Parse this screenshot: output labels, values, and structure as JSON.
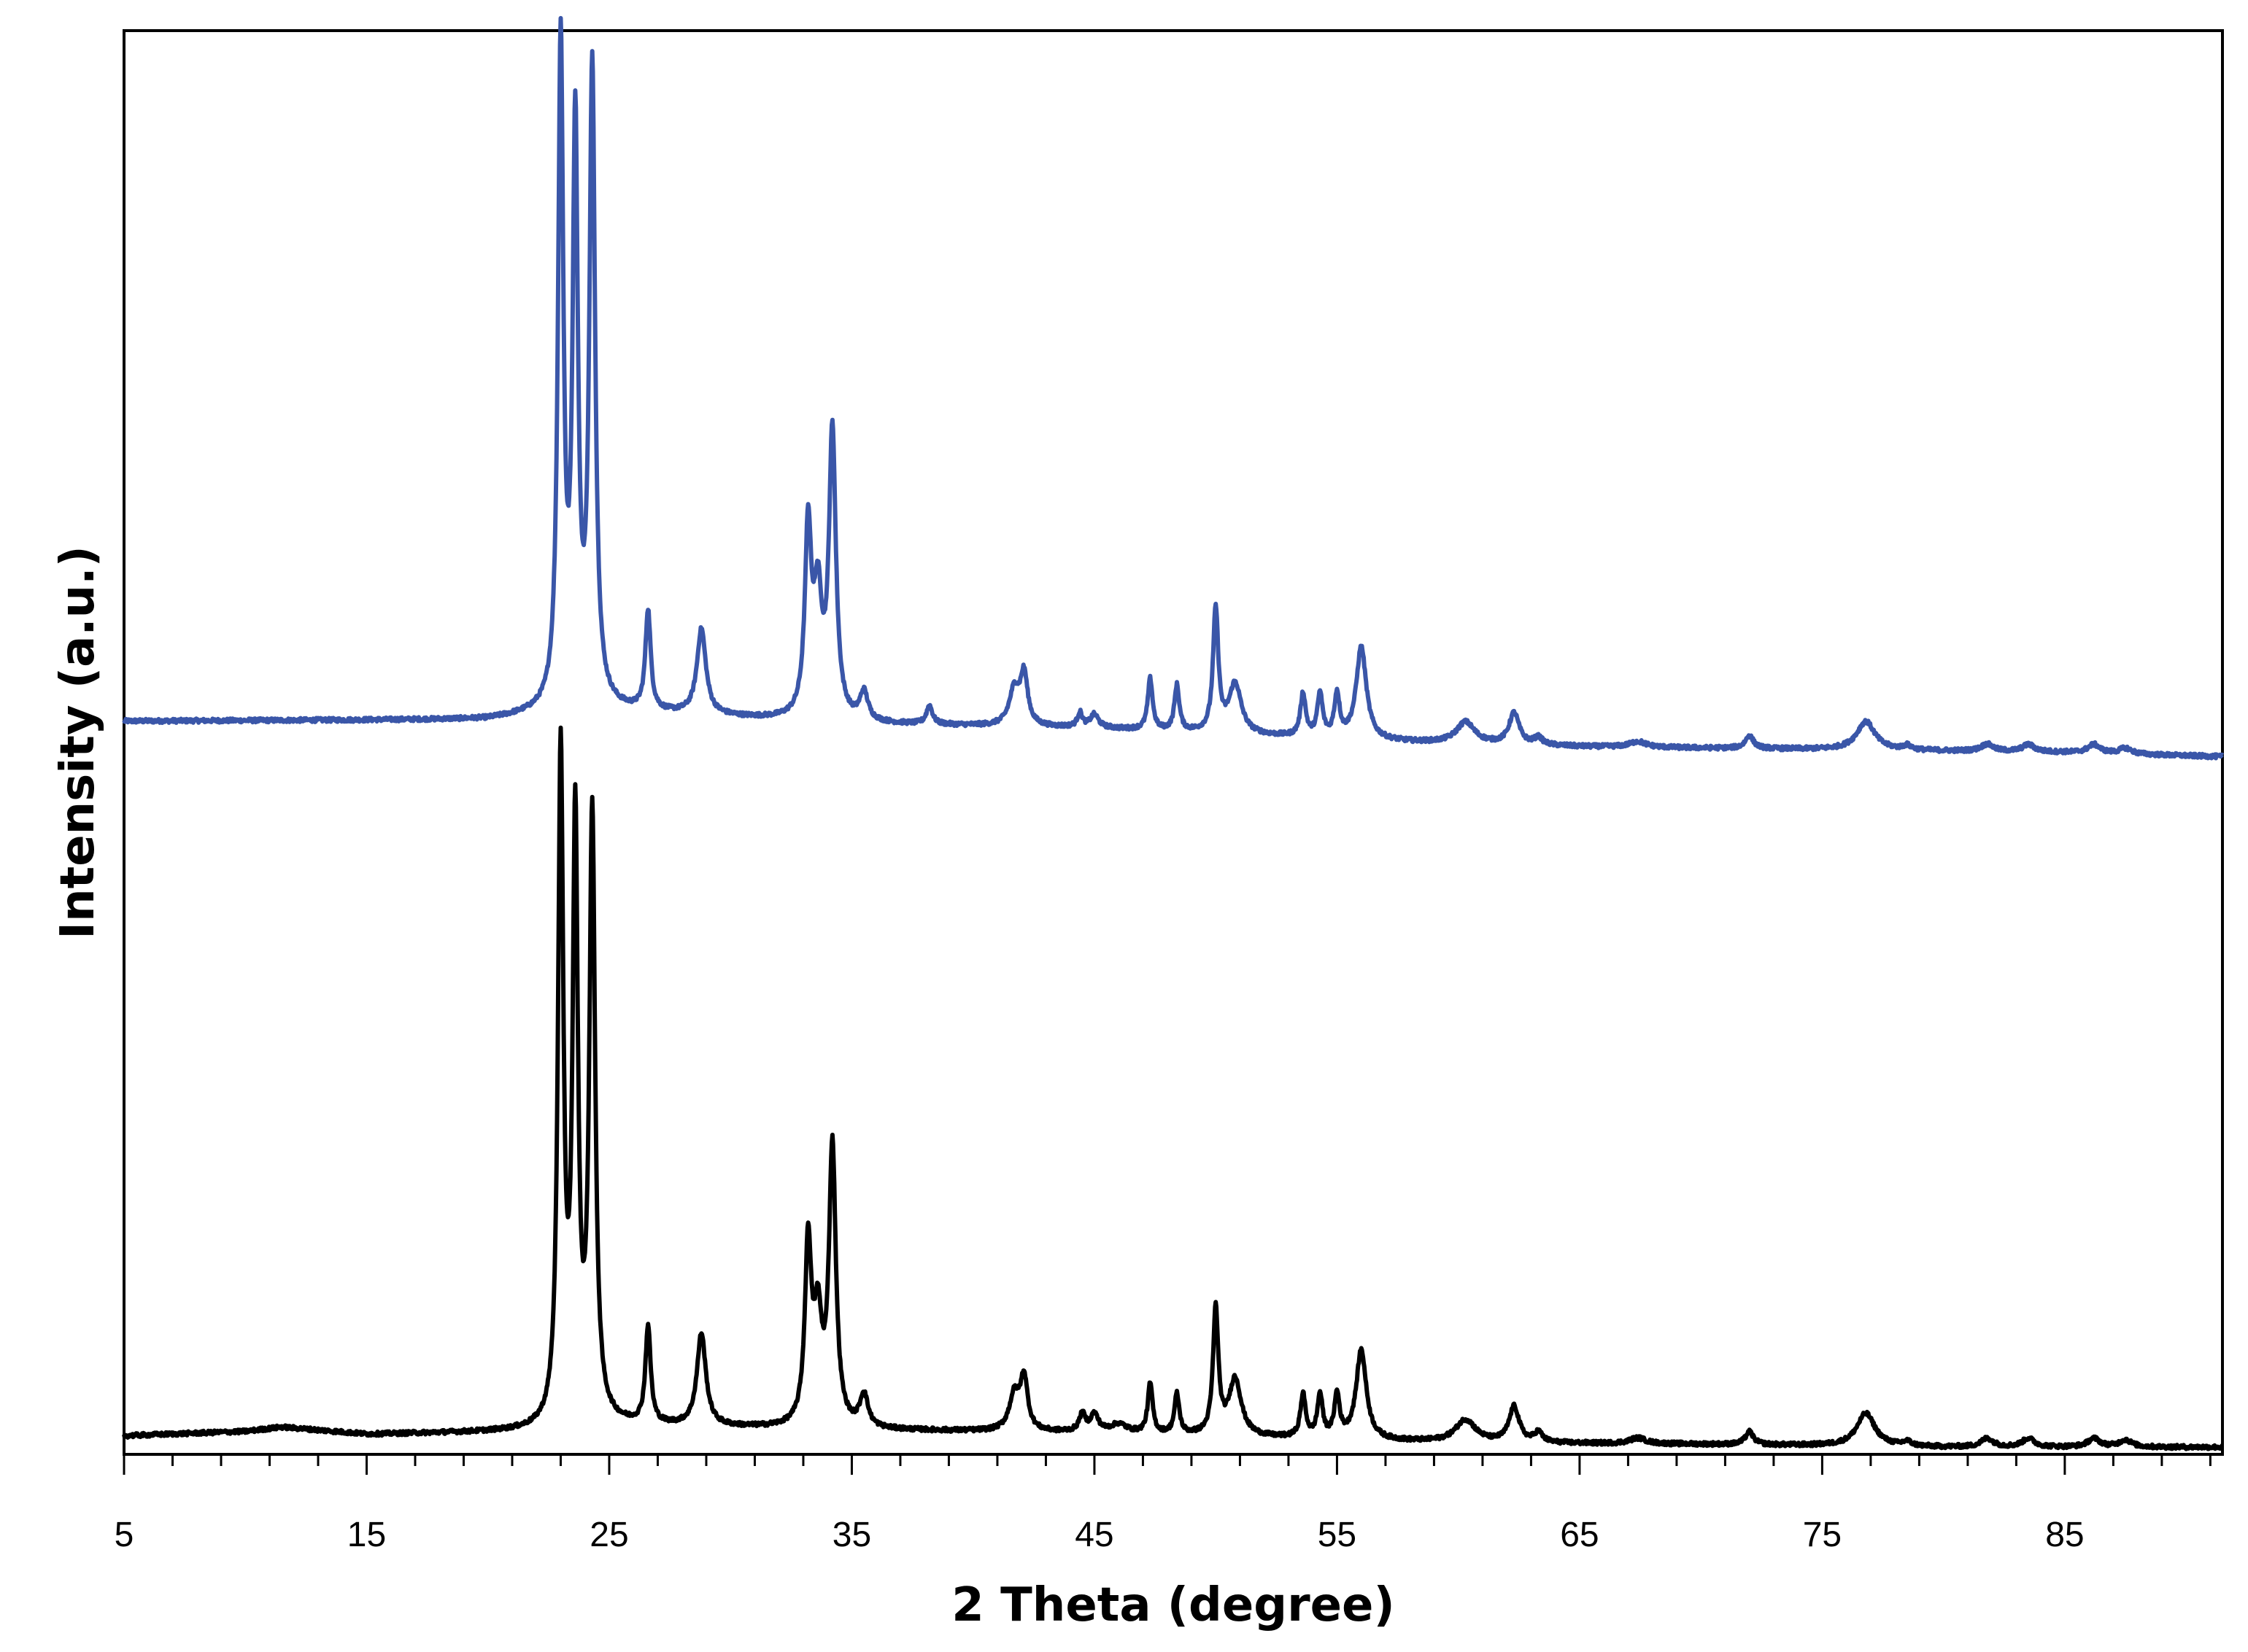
{
  "chart_data": {
    "type": "line",
    "title": "",
    "xlabel": "2 Theta (degree)",
    "ylabel": "Intensity (a.u.)",
    "xlim": [
      5,
      91.5
    ],
    "ylim": [
      0,
      100
    ],
    "x_ticks": [
      5,
      15,
      25,
      35,
      45,
      55,
      65,
      75,
      85
    ],
    "y_tick_labels_shown": false,
    "grid": false,
    "legend": "none",
    "series": [
      {
        "color": "#3a56a8",
        "baseline": [
          [
            5,
            51.5
          ],
          [
            20,
            51.6
          ],
          [
            22.5,
            52.0
          ],
          [
            25,
            52.2
          ],
          [
            35,
            51.3
          ],
          [
            45,
            51.0
          ],
          [
            55,
            50.2
          ],
          [
            58,
            50.0
          ],
          [
            65,
            49.7
          ],
          [
            75,
            49.5
          ],
          [
            85,
            49.3
          ],
          [
            91.5,
            49.0
          ]
        ],
        "peaks": [
          {
            "x": 23.0,
            "height": 46.5,
            "width": 0.13
          },
          {
            "x": 23.6,
            "height": 40.0,
            "width": 0.13
          },
          {
            "x": 24.3,
            "height": 44.5,
            "width": 0.14
          },
          {
            "x": 26.6,
            "height": 7.0,
            "width": 0.13
          },
          {
            "x": 28.8,
            "height": 6.0,
            "width": 0.22
          },
          {
            "x": 33.2,
            "height": 13.0,
            "width": 0.16
          },
          {
            "x": 33.6,
            "height": 8.0,
            "width": 0.2
          },
          {
            "x": 34.2,
            "height": 20.0,
            "width": 0.17
          },
          {
            "x": 35.5,
            "height": 2.0,
            "width": 0.2
          },
          {
            "x": 38.2,
            "height": 1.3,
            "width": 0.15
          },
          {
            "x": 41.7,
            "height": 2.5,
            "width": 0.25
          },
          {
            "x": 42.1,
            "height": 3.5,
            "width": 0.18
          },
          {
            "x": 44.4,
            "height": 1.0,
            "width": 0.12
          },
          {
            "x": 45.0,
            "height": 0.9,
            "width": 0.2
          },
          {
            "x": 47.3,
            "height": 3.6,
            "width": 0.12
          },
          {
            "x": 48.4,
            "height": 3.2,
            "width": 0.12
          },
          {
            "x": 50.0,
            "height": 8.6,
            "width": 0.13
          },
          {
            "x": 50.8,
            "height": 3.5,
            "width": 0.3
          },
          {
            "x": 53.6,
            "height": 3.0,
            "width": 0.13
          },
          {
            "x": 54.3,
            "height": 3.0,
            "width": 0.13
          },
          {
            "x": 55.0,
            "height": 3.0,
            "width": 0.13
          },
          {
            "x": 56.0,
            "height": 6.5,
            "width": 0.25
          },
          {
            "x": 60.3,
            "height": 1.5,
            "width": 0.45
          },
          {
            "x": 62.3,
            "height": 2.2,
            "width": 0.25
          },
          {
            "x": 63.3,
            "height": 0.5,
            "width": 0.2
          },
          {
            "x": 67.4,
            "height": 0.4,
            "width": 0.4
          },
          {
            "x": 72.0,
            "height": 0.9,
            "width": 0.2
          },
          {
            "x": 76.8,
            "height": 2.0,
            "width": 0.45
          },
          {
            "x": 78.5,
            "height": 0.3,
            "width": 0.2
          },
          {
            "x": 81.8,
            "height": 0.5,
            "width": 0.3
          },
          {
            "x": 83.5,
            "height": 0.5,
            "width": 0.3
          },
          {
            "x": 86.2,
            "height": 0.6,
            "width": 0.3
          },
          {
            "x": 87.5,
            "height": 0.4,
            "width": 0.3
          }
        ]
      },
      {
        "color": "#000000",
        "baseline": [
          [
            5,
            1.3
          ],
          [
            10,
            1.6
          ],
          [
            11.5,
            1.9
          ],
          [
            15,
            1.4
          ],
          [
            22.5,
            1.6
          ],
          [
            25,
            2.0
          ],
          [
            35,
            1.7
          ],
          [
            45,
            1.5
          ],
          [
            55,
            1.0
          ],
          [
            60,
            0.8
          ],
          [
            70,
            0.7
          ],
          [
            80,
            0.5
          ],
          [
            91.5,
            0.5
          ]
        ],
        "peaks": [
          {
            "x": 23.0,
            "height": 47.0,
            "width": 0.13
          },
          {
            "x": 23.6,
            "height": 41.5,
            "width": 0.13
          },
          {
            "x": 24.3,
            "height": 42.5,
            "width": 0.14
          },
          {
            "x": 26.6,
            "height": 6.8,
            "width": 0.13
          },
          {
            "x": 28.8,
            "height": 6.5,
            "width": 0.22
          },
          {
            "x": 33.2,
            "height": 12.5,
            "width": 0.16
          },
          {
            "x": 33.6,
            "height": 7.0,
            "width": 0.2
          },
          {
            "x": 34.2,
            "height": 19.5,
            "width": 0.17
          },
          {
            "x": 35.5,
            "height": 2.3,
            "width": 0.2
          },
          {
            "x": 41.7,
            "height": 2.5,
            "width": 0.25
          },
          {
            "x": 42.1,
            "height": 3.6,
            "width": 0.18
          },
          {
            "x": 44.5,
            "height": 1.2,
            "width": 0.15
          },
          {
            "x": 45.0,
            "height": 1.2,
            "width": 0.2
          },
          {
            "x": 46.0,
            "height": 0.6,
            "width": 0.4
          },
          {
            "x": 47.3,
            "height": 3.5,
            "width": 0.12
          },
          {
            "x": 48.4,
            "height": 2.8,
            "width": 0.12
          },
          {
            "x": 50.0,
            "height": 8.8,
            "width": 0.13
          },
          {
            "x": 50.8,
            "height": 4.0,
            "width": 0.3
          },
          {
            "x": 53.6,
            "height": 3.0,
            "width": 0.13
          },
          {
            "x": 54.3,
            "height": 3.0,
            "width": 0.13
          },
          {
            "x": 55.0,
            "height": 3.0,
            "width": 0.13
          },
          {
            "x": 56.0,
            "height": 6.3,
            "width": 0.25
          },
          {
            "x": 60.3,
            "height": 1.6,
            "width": 0.5
          },
          {
            "x": 62.3,
            "height": 2.5,
            "width": 0.25
          },
          {
            "x": 63.3,
            "height": 0.7,
            "width": 0.2
          },
          {
            "x": 67.4,
            "height": 0.4,
            "width": 0.4
          },
          {
            "x": 72.0,
            "height": 0.9,
            "width": 0.2
          },
          {
            "x": 76.8,
            "height": 2.3,
            "width": 0.45
          },
          {
            "x": 78.5,
            "height": 0.3,
            "width": 0.2
          },
          {
            "x": 81.8,
            "height": 0.6,
            "width": 0.3
          },
          {
            "x": 83.5,
            "height": 0.6,
            "width": 0.3
          },
          {
            "x": 86.2,
            "height": 0.6,
            "width": 0.3
          },
          {
            "x": 87.5,
            "height": 0.5,
            "width": 0.3
          }
        ]
      }
    ]
  }
}
